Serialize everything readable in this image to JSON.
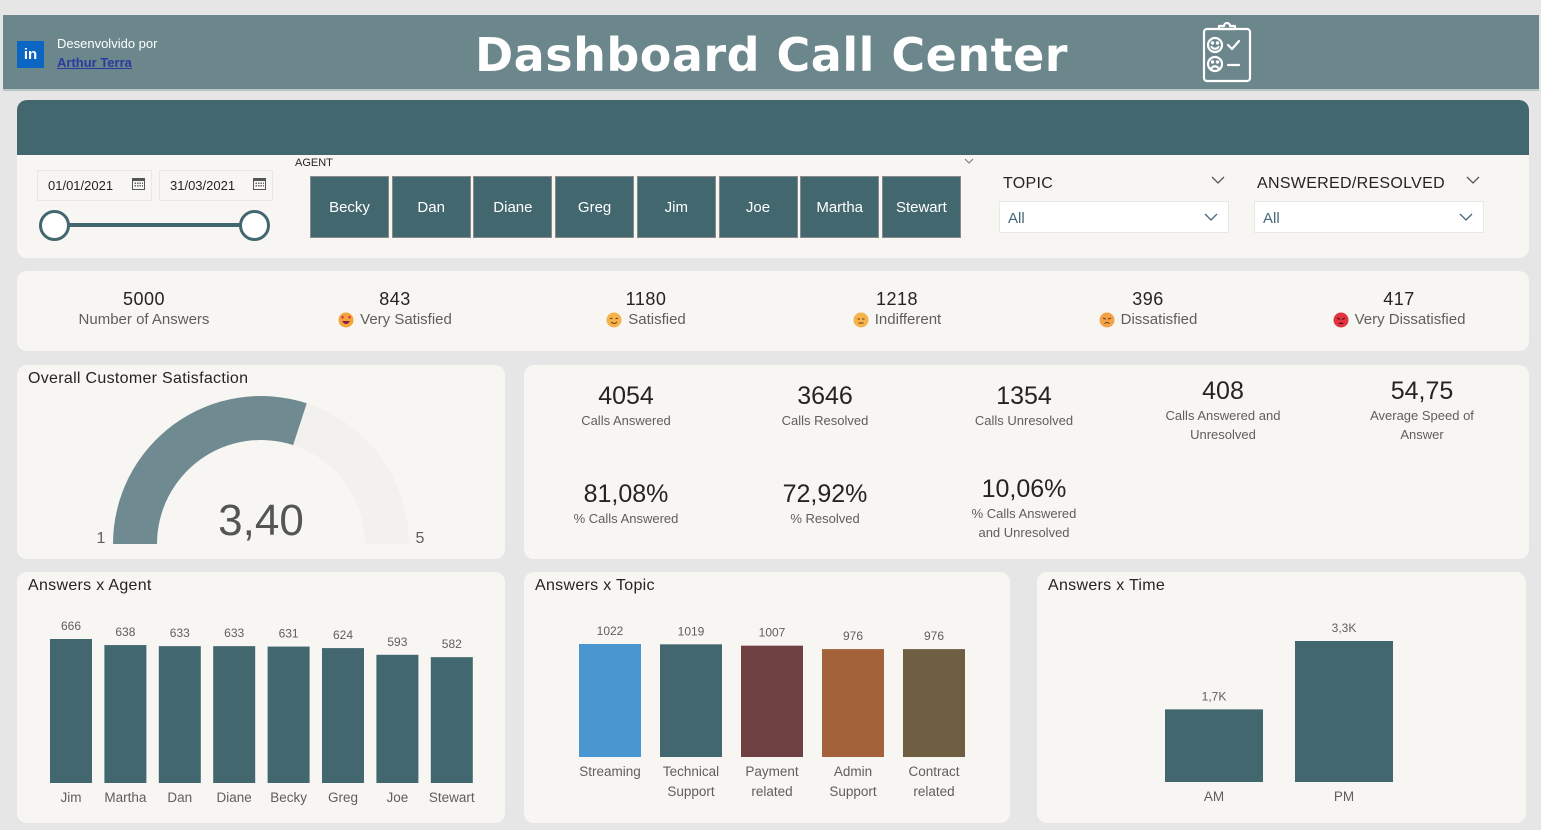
{
  "header": {
    "linkedin_icon": "in",
    "developed_by": "Desenvolvido por",
    "author": "Arthur Terra",
    "title": "Dashboard Call Center",
    "title_icon": "clipboard-feedback-icon"
  },
  "filters": {
    "date_start": "01/01/2021",
    "date_end": "31/03/2021",
    "date_range_fraction": [
      0,
      1
    ],
    "agent_label": "AGENT",
    "agents": [
      "Becky",
      "Dan",
      "Diane",
      "Greg",
      "Jim",
      "Joe",
      "Martha",
      "Stewart"
    ],
    "topic_label": "TOPIC",
    "topic_value": "All",
    "answered_label": "ANSWERED/RESOLVED",
    "answered_value": "All"
  },
  "kpis": [
    {
      "value": "5000",
      "label": "Number of Answers",
      "emoji": null
    },
    {
      "value": "843",
      "label": "Very Satisfied",
      "emoji": "heart-eyes-emoji"
    },
    {
      "value": "1180",
      "label": "Satisfied",
      "emoji": "smile-emoji"
    },
    {
      "value": "1218",
      "label": "Indifferent",
      "emoji": "neutral-emoji"
    },
    {
      "value": "396",
      "label": "Dissatisfied",
      "emoji": "annoyed-emoji"
    },
    {
      "value": "417",
      "label": "Very Dissatisfied",
      "emoji": "angry-emoji"
    }
  ],
  "gauge": {
    "title": "Overall Customer Satisfaction",
    "value": 3.4,
    "value_label": "3,40",
    "min": 1,
    "max": 5,
    "min_label": "1",
    "max_label": "5"
  },
  "metrics": [
    {
      "value": "4054",
      "label": "Calls Answered"
    },
    {
      "value": "3646",
      "label": "Calls Resolved"
    },
    {
      "value": "1354",
      "label": "Calls Unresolved"
    },
    {
      "value": "408",
      "label": "Calls Answered and Unresolved"
    },
    {
      "value": "54,75",
      "label": "Average Speed of Answer"
    },
    {
      "value": "81,08%",
      "label": "% Calls Answered"
    },
    {
      "value": "72,92%",
      "label": "% Resolved"
    },
    {
      "value": "10,06%",
      "label": "% Calls Answered and Unresolved"
    }
  ],
  "colors": {
    "header": "#6b878c",
    "primary": "#43676f",
    "gauge_fill": "#6f8a91",
    "gauge_bg": "#f2f1ee",
    "card": "#f7f6f2",
    "page": "#e6e6e6"
  },
  "chart_data": [
    {
      "type": "bar",
      "title": "Answers x Agent",
      "categories": [
        "Jim",
        "Martha",
        "Dan",
        "Diane",
        "Becky",
        "Greg",
        "Joe",
        "Stewart"
      ],
      "values": [
        666,
        638,
        633,
        633,
        631,
        624,
        593,
        582
      ],
      "value_labels": [
        "666",
        "638",
        "633",
        "633",
        "631",
        "624",
        "593",
        "582"
      ],
      "colors": [
        "#43676f"
      ],
      "xlabel": "",
      "ylabel": "",
      "ylim": [
        0,
        666
      ],
      "grid": false,
      "legend": "none"
    },
    {
      "type": "bar",
      "title": "Answers x Topic",
      "categories": [
        "Streaming",
        "Technical Support",
        "Payment related",
        "Admin Support",
        "Contract related"
      ],
      "category_lines": [
        [
          "Streaming"
        ],
        [
          "Technical",
          "Support"
        ],
        [
          "Payment",
          "related"
        ],
        [
          "Admin",
          "Support"
        ],
        [
          "Contract",
          "related"
        ]
      ],
      "values": [
        1022,
        1019,
        1007,
        976,
        976
      ],
      "value_labels": [
        "1022",
        "1019",
        "1007",
        "976",
        "976"
      ],
      "colors": [
        "#4a96d0",
        "#43676f",
        "#6e4042",
        "#a4623a",
        "#6f5f42"
      ],
      "xlabel": "",
      "ylabel": "",
      "ylim": [
        0,
        1022
      ],
      "grid": false,
      "legend": "none"
    },
    {
      "type": "bar",
      "title": "Answers x Time",
      "categories": [
        "AM",
        "PM"
      ],
      "values": [
        1700,
        3300
      ],
      "value_labels": [
        "1,7K",
        "3,3K"
      ],
      "colors": [
        "#43676f"
      ],
      "xlabel": "",
      "ylabel": "",
      "ylim": [
        0,
        3300
      ],
      "grid": false,
      "legend": "none"
    }
  ]
}
